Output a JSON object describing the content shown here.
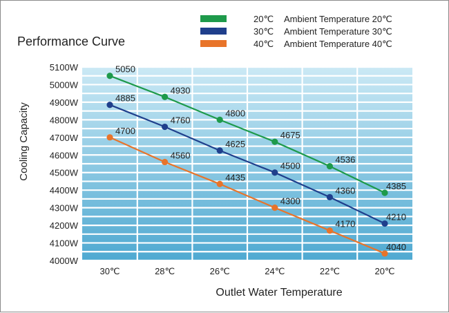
{
  "chart_data": {
    "type": "line",
    "title": "Performance Curve",
    "xlabel": "Outlet Water Temperature",
    "ylabel": "Cooling Capacity",
    "categories": [
      "30℃",
      "28℃",
      "26℃",
      "24℃",
      "22℃",
      "20℃"
    ],
    "y_ticks": [
      "4000W",
      "4100W",
      "4200W",
      "4300W",
      "4400W",
      "4500W",
      "4600W",
      "4700W",
      "4800W",
      "4900W",
      "5000W",
      "5100W"
    ],
    "ylim": [
      4000,
      5100
    ],
    "grid": true,
    "legend_position": "top-right",
    "series": [
      {
        "name": "Ambient Temperature 20℃",
        "legend_prefix": "20℃",
        "color": "#1e9a4b",
        "values": [
          5050,
          4930,
          4800,
          4675,
          4536,
          4385
        ]
      },
      {
        "name": "Ambient Temperature 30℃",
        "legend_prefix": "30℃",
        "color": "#1f3f8c",
        "values": [
          4885,
          4760,
          4625,
          4500,
          4360,
          4210
        ]
      },
      {
        "name": "Ambient Temperature 40℃",
        "legend_prefix": "40℃",
        "color": "#e8742a",
        "values": [
          4700,
          4560,
          4435,
          4300,
          4170,
          4040
        ]
      }
    ]
  }
}
